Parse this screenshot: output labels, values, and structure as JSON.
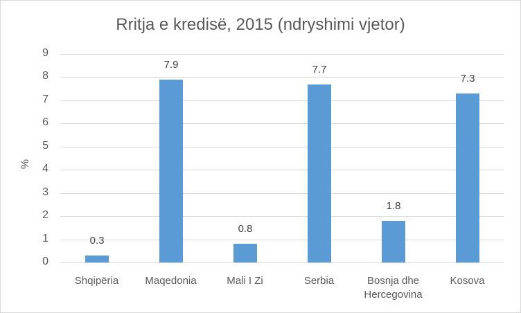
{
  "chart_data": {
    "type": "bar",
    "title": "Rritja e kredisë, 2015 (ndryshimi vjetor)",
    "xlabel": "",
    "ylabel": "%",
    "ylim": [
      0,
      9
    ],
    "yticks": [
      "0",
      "1",
      "2",
      "3",
      "4",
      "5",
      "6",
      "7",
      "8",
      "9"
    ],
    "grid": true,
    "legend": null,
    "categories": [
      "Shqipëria",
      "Maqedonia",
      "Mali I Zi",
      "Serbia",
      "Bosnja dhe Hercegovina",
      "Kosova"
    ],
    "category_lines": [
      [
        "Shqipëria"
      ],
      [
        "Maqedonia"
      ],
      [
        "Mali I Zi"
      ],
      [
        "Serbia"
      ],
      [
        "Bosnja dhe",
        "Hercegovina"
      ],
      [
        "Kosova"
      ]
    ],
    "values": [
      0.3,
      7.9,
      0.8,
      7.7,
      1.8,
      7.3
    ],
    "value_labels": [
      "0.3",
      "7.9",
      "0.8",
      "7.7",
      "1.8",
      "7.3"
    ],
    "bar_color": "#5b9bd5"
  }
}
